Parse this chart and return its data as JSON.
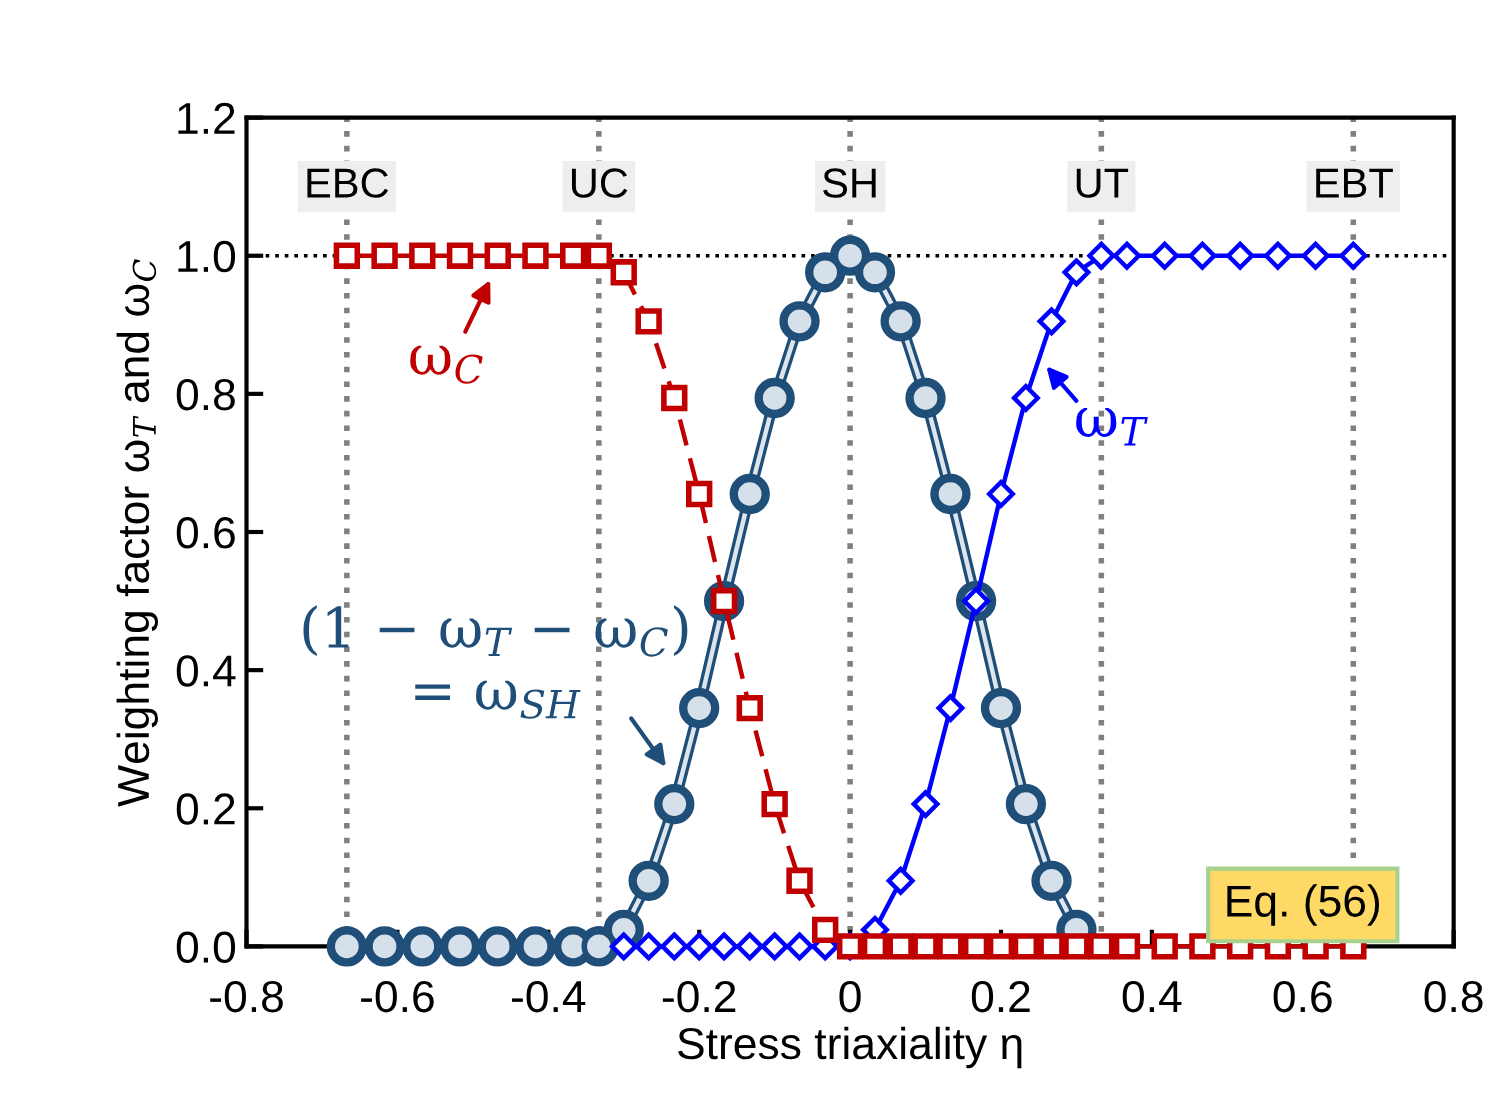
{
  "chart_data": {
    "type": "line",
    "xlabel": "Stress triaxiality η",
    "ylabel": "Weighting factor ω$_{T}$ and ω$_{C}$",
    "xlim": [
      -0.8,
      0.8
    ],
    "ylim": [
      0,
      1.2
    ],
    "xticks": [
      {
        "value": -0.8,
        "label": "-0.8"
      },
      {
        "value": -0.6,
        "label": "-0.6"
      },
      {
        "value": -0.4,
        "label": "-0.4"
      },
      {
        "value": -0.2,
        "label": "-0.2"
      },
      0,
      0.2,
      0.4,
      0.6,
      0.8
    ],
    "yticks": [
      {
        "value": 0,
        "label": "0.0"
      },
      0.2,
      0.4,
      0.6,
      0.8,
      {
        "value": 1,
        "label": "1.0"
      },
      1.2
    ],
    "grid": false,
    "legend": false,
    "series": [
      {
        "marker": "circle",
        "line_style": "solid",
        "color": "#1f4e79",
        "x": [
          -0.667,
          -0.617,
          -0.567,
          -0.517,
          -0.467,
          -0.417,
          -0.367,
          -0.333,
          -0.3,
          -0.267,
          -0.233,
          -0.2,
          -0.167,
          -0.133,
          -0.1,
          -0.067,
          -0.033,
          0,
          0.033,
          0.067,
          0.1,
          0.133,
          0.167,
          0.2,
          0.233,
          0.267,
          0.3
        ],
        "values": [
          0,
          0,
          0,
          0,
          0,
          0,
          0,
          0,
          0.024,
          0.095,
          0.206,
          0.345,
          0.5,
          0.655,
          0.794,
          0.905,
          0.976,
          1,
          0.976,
          0.905,
          0.794,
          0.655,
          0.5,
          0.345,
          0.206,
          0.095,
          0.024
        ]
      },
      {
        "marker": "diamond",
        "line_style": "solid",
        "color": "#0000ff",
        "x": [
          -0.3,
          -0.267,
          -0.233,
          -0.2,
          -0.167,
          -0.133,
          -0.1,
          -0.067,
          -0.033,
          0,
          0.033,
          0.067,
          0.1,
          0.133,
          0.167,
          0.2,
          0.233,
          0.267,
          0.3,
          0.333,
          0.367,
          0.417,
          0.467,
          0.517,
          0.567,
          0.617,
          0.667
        ],
        "values": [
          0,
          0,
          0,
          0,
          0,
          0,
          0,
          0,
          0,
          0,
          0.024,
          0.095,
          0.206,
          0.345,
          0.5,
          0.655,
          0.794,
          0.905,
          0.976,
          1,
          1,
          1,
          1,
          1,
          1,
          1,
          1
        ]
      },
      {
        "marker": "square",
        "line_style": "dashed",
        "color": "#c00000",
        "x": [
          -0.667,
          -0.617,
          -0.567,
          -0.517,
          -0.467,
          -0.417,
          -0.367,
          -0.333,
          -0.3,
          -0.267,
          -0.233,
          -0.2,
          -0.167,
          -0.133,
          -0.1,
          -0.067,
          -0.033,
          0,
          0.033,
          0.067,
          0.1,
          0.133,
          0.167,
          0.2,
          0.233,
          0.267,
          0.3,
          0.333,
          0.367,
          0.417,
          0.467,
          0.517,
          0.567,
          0.617,
          0.667
        ],
        "values": [
          1,
          1,
          1,
          1,
          1,
          1,
          1,
          1,
          0.976,
          0.905,
          0.794,
          0.655,
          0.5,
          0.345,
          0.206,
          0.095,
          0.024,
          0,
          0,
          0,
          0,
          0,
          0,
          0,
          0,
          0,
          0,
          0,
          0,
          0,
          0,
          0,
          0,
          0,
          0
        ]
      }
    ],
    "ref_lines": [
      {
        "axis": "x",
        "value": -0.667,
        "label": "EBC",
        "color": "#808080",
        "line_style": "dotted"
      },
      {
        "axis": "x",
        "value": -0.333,
        "label": "UC",
        "color": "#808080",
        "line_style": "dotted"
      },
      {
        "axis": "x",
        "value": 0,
        "label": "SH",
        "color": "#808080",
        "line_style": "dotted"
      },
      {
        "axis": "x",
        "value": 0.333,
        "label": "UT",
        "color": "#808080",
        "line_style": "dotted"
      },
      {
        "axis": "x",
        "value": 0.667,
        "label": "EBT",
        "color": "#808080",
        "line_style": "dotted"
      },
      {
        "axis": "y",
        "value": 1,
        "label": null,
        "color": "#000000",
        "line_style": "dotted"
      }
    ],
    "annotations": [
      "ω$_{C}$",
      "ω$_{T}$",
      "(1 − ω$_{T}$ − ω$_{C}$)\n= ω$_{SH}$",
      "Eq. (56)"
    ]
  }
}
